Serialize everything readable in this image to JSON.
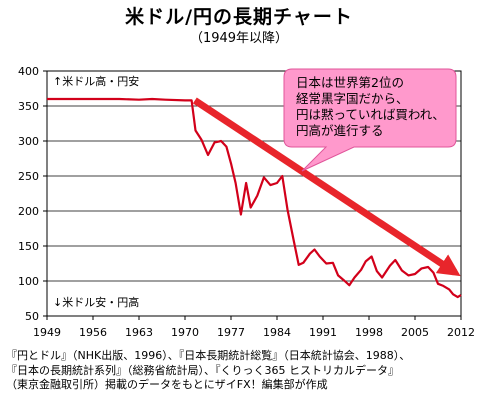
{
  "title": "米ドル/円の長期チャート",
  "subtitle": "（1949年以降）",
  "source_lines": [
    "『円とドル』（NHK出版、1996）、『日本長期統計総覧』（日本統計協会、1988）、",
    "『日本の長期統計系列』（総務省統計局）、『くりっく365 ヒストリカルデータ』",
    "（東京金融取引所）掲載のデータをもとにザイFX！編集部が作成"
  ],
  "colors": {
    "series": "#d2001a",
    "arrow": "#e8252b",
    "callout_fill": "#ff99cc",
    "callout_border": "#e0559a",
    "grid": "#000000"
  },
  "chart_data": {
    "type": "line",
    "title": "米ドル/円の長期チャート",
    "subtitle": "（1949年以降）",
    "xlabel": "",
    "ylabel": "",
    "xlim": [
      1949,
      2012
    ],
    "ylim": [
      50,
      400
    ],
    "x_ticks": [
      1949,
      1956,
      1963,
      1970,
      1977,
      1984,
      1991,
      1998,
      2005,
      2012
    ],
    "y_ticks": [
      50,
      100,
      150,
      200,
      250,
      300,
      350,
      400
    ],
    "grid": "horizontal",
    "axis_annotations": {
      "top": "↑米ドル高・円安",
      "bottom": "↓米ドル安・円高"
    },
    "series": [
      {
        "points": [
          [
            1949,
            360
          ],
          [
            1952,
            360
          ],
          [
            1956,
            360
          ],
          [
            1960,
            360
          ],
          [
            1963,
            359
          ],
          [
            1965,
            360
          ],
          [
            1967,
            359
          ],
          [
            1970,
            358
          ],
          [
            1971,
            358
          ],
          [
            1971.6,
            315
          ],
          [
            1972.5,
            302
          ],
          [
            1973.5,
            280
          ],
          [
            1974.5,
            298
          ],
          [
            1975.5,
            300
          ],
          [
            1976.3,
            292
          ],
          [
            1977,
            268
          ],
          [
            1977.7,
            240
          ],
          [
            1978.5,
            195
          ],
          [
            1979.3,
            240
          ],
          [
            1980,
            205
          ],
          [
            1981,
            222
          ],
          [
            1982,
            248
          ],
          [
            1983,
            237
          ],
          [
            1984,
            240
          ],
          [
            1984.8,
            250
          ],
          [
            1985.6,
            202
          ],
          [
            1986.5,
            160
          ],
          [
            1987.3,
            123
          ],
          [
            1988,
            126
          ],
          [
            1989,
            139
          ],
          [
            1989.7,
            145
          ],
          [
            1990.5,
            135
          ],
          [
            1991.5,
            125
          ],
          [
            1992.5,
            126
          ],
          [
            1993.3,
            108
          ],
          [
            1994.3,
            100
          ],
          [
            1995,
            94
          ],
          [
            1995.8,
            105
          ],
          [
            1996.8,
            116
          ],
          [
            1997.5,
            128
          ],
          [
            1998.4,
            135
          ],
          [
            1999.2,
            114
          ],
          [
            2000,
            105
          ],
          [
            2001.2,
            122
          ],
          [
            2002,
            130
          ],
          [
            2003,
            115
          ],
          [
            2004,
            108
          ],
          [
            2005,
            110
          ],
          [
            2006,
            118
          ],
          [
            2007,
            120
          ],
          [
            2007.8,
            112
          ],
          [
            2008.5,
            96
          ],
          [
            2009.3,
            93
          ],
          [
            2010.2,
            88
          ],
          [
            2010.8,
            81
          ],
          [
            2011.5,
            77
          ],
          [
            2012,
            80
          ]
        ]
      }
    ],
    "trend_arrow": {
      "from": [
        1971.5,
        358
      ],
      "to": [
        2012,
        108
      ]
    },
    "callout": {
      "lines": [
        "日本は世界第2位の",
        "経常黒字国だから、",
        "円は黙っていれば買われ、",
        "円高が進行する"
      ]
    }
  }
}
